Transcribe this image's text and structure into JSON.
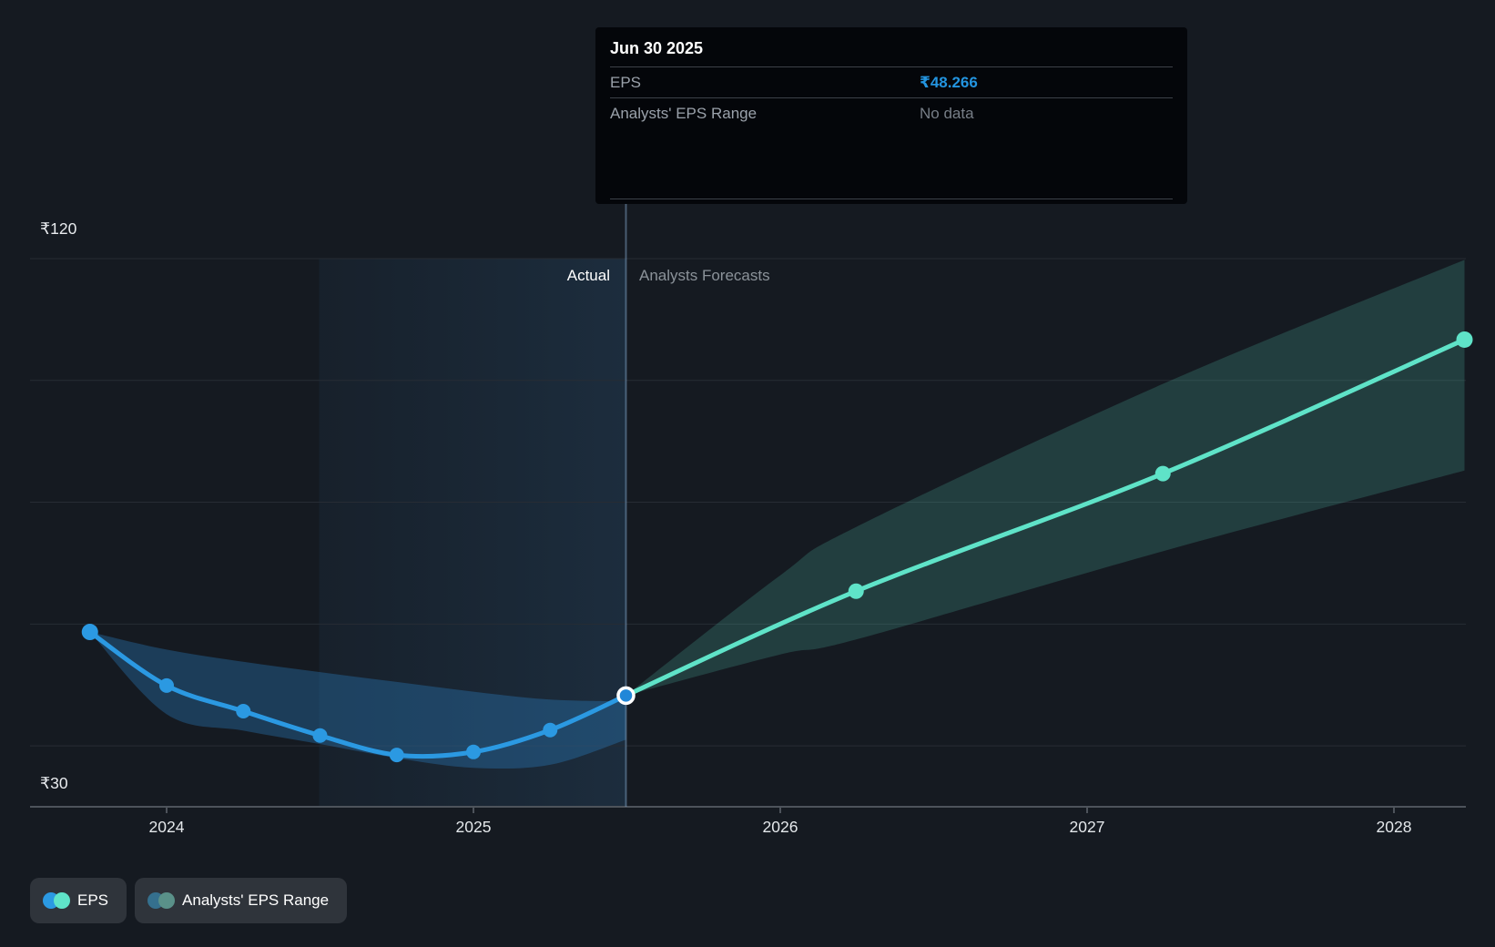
{
  "tooltip": {
    "date": "Jun 30 2025",
    "rows": [
      {
        "label": "EPS",
        "value": "₹48.266",
        "value_color": "#2394df"
      },
      {
        "label": "Analysts' EPS Range",
        "value": "No data"
      }
    ]
  },
  "labels": {
    "actual": "Actual",
    "forecast": "Analysts Forecasts"
  },
  "axis": {
    "y_top_label": "₹120",
    "y_bottom_label": "₹30",
    "years": [
      2024,
      2025,
      2026,
      2027,
      2028
    ]
  },
  "legend": {
    "items": [
      {
        "label": "EPS",
        "dot_colors": [
          "#2b99e2",
          "#5fe3c8"
        ]
      },
      {
        "label": "Analysts' EPS Range",
        "dot_colors": [
          "#35708e",
          "#5a9189"
        ]
      }
    ]
  },
  "colors": {
    "actual_line": "#2b99e2",
    "forecast_line": "#5fe3c8",
    "actual_band_fill": "rgba(45,144,220,0.30)",
    "forecast_band_fill": "rgba(95,227,200,0.18)",
    "gridline": "#272c34",
    "axis_line": "#4d535b",
    "divider_line": "rgba(125,160,195,0.5)",
    "highlight_from": "rgba(60,140,210,0.06)",
    "highlight_to": "rgba(72,160,235,0.14)",
    "eps_value_blue": "#2394df"
  },
  "chart_data": {
    "type": "line",
    "title": "EPS actual vs analysts forecasts",
    "currency": "₹",
    "ylabel": "EPS",
    "ylim": [
      30,
      120
    ],
    "gridline_values": [
      120,
      100,
      80,
      60,
      40
    ],
    "baseline_value": 30,
    "divider_x": 2025.497,
    "highlight_range": [
      2024.497,
      2025.497
    ],
    "series": [
      {
        "name": "EPS (actual)",
        "dates": [
          "Sep 30 2023",
          "Dec 31 2023",
          "Mar 31 2024",
          "Jun 30 2024",
          "Sep 30 2024",
          "Dec 31 2024",
          "Mar 31 2025",
          "Jun 30 2025"
        ],
        "x": [
          2023.75,
          2024.0,
          2024.25,
          2024.5,
          2024.75,
          2025.0,
          2025.25,
          2025.497
        ],
        "values": [
          58.7,
          49.9,
          45.7,
          41.7,
          38.5,
          39.0,
          42.6,
          48.266
        ]
      },
      {
        "name": "EPS (analysts forecast)",
        "dates": [
          "Jun 30 2025",
          "Mar 31 2026",
          "Mar 31 2027",
          "Mar 31 2028"
        ],
        "x": [
          2025.497,
          2026.247,
          2027.247,
          2028.23
        ],
        "values": [
          48.266,
          65.4,
          84.7,
          106.7
        ]
      }
    ],
    "bands": [
      {
        "name": "actual EPS range",
        "points": [
          [
            2023.75,
            58.7,
            58.7
          ],
          [
            2024.0,
            55.8,
            45.2
          ],
          [
            2024.25,
            53.8,
            42.5
          ],
          [
            2024.5,
            52.1,
            40.3
          ],
          [
            2024.75,
            50.5,
            38.0
          ],
          [
            2025.0,
            48.9,
            36.4
          ],
          [
            2025.25,
            47.6,
            36.9
          ],
          [
            2025.497,
            47.3,
            41.0
          ]
        ]
      },
      {
        "name": "Analysts' EPS Range",
        "points": [
          [
            2025.497,
            48.266,
            48.266
          ],
          [
            2026.0,
            68.0,
            55.0
          ],
          [
            2026.25,
            76.0,
            57.5
          ],
          [
            2027.25,
            99.5,
            72.0
          ],
          [
            2028.23,
            119.8,
            85.2
          ]
        ]
      }
    ]
  }
}
